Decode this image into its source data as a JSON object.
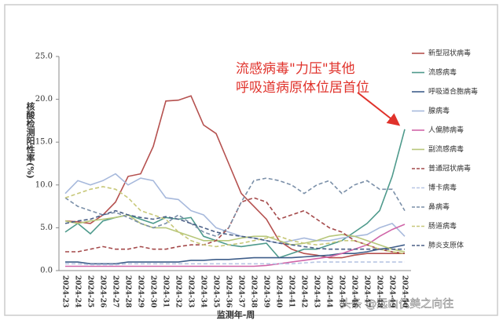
{
  "chart_data": {
    "type": "line",
    "y_label": "核酸检测阳性率(%)",
    "x_label": "监测年-周",
    "annotation": [
      "流感病毒\"力压\"其他",
      "呼吸道病原体位居首位"
    ],
    "watermark": "头条 @远山优美之向往",
    "categories": [
      "2024-23",
      "2024-24",
      "2024-25",
      "2024-26",
      "2024-27",
      "2024-28",
      "2024-29",
      "2024-30",
      "2024-31",
      "2024-32",
      "2024-33",
      "2024-34",
      "2024-35",
      "2024-36",
      "2024-37",
      "2024-38",
      "2024-39",
      "2024-40",
      "2024-41",
      "2024-42",
      "2024-43",
      "2024-44",
      "2024-45",
      "2024-46",
      "2024-47",
      "2024-48",
      "2024-49",
      "2024-50"
    ],
    "ylim": [
      0,
      25
    ],
    "yticks": [
      {
        "value": 0,
        "label": "0.0"
      },
      {
        "value": 5,
        "label": "5.0"
      },
      {
        "value": 10,
        "label": "10.0"
      },
      {
        "value": 15,
        "label": "15.0"
      },
      {
        "value": 20,
        "label": "20.0"
      },
      {
        "value": 25,
        "label": "25.0"
      }
    ],
    "series": [
      {
        "name": "新型冠状病毒",
        "color": "#b5514f",
        "dashed": false,
        "values": [
          5.8,
          5.7,
          5.5,
          6.5,
          8,
          11,
          11.3,
          14.5,
          19.8,
          19.9,
          20.4,
          17,
          16,
          12.5,
          9,
          7.5,
          6,
          3.5,
          2.5,
          2,
          1.8,
          1.5,
          1.5,
          1.8,
          2,
          2,
          2,
          2
        ]
      },
      {
        "name": "流感病毒",
        "color": "#4e9a8c",
        "dashed": false,
        "values": [
          4.5,
          5.5,
          4.3,
          5.8,
          6.2,
          6.5,
          6,
          5.5,
          6.2,
          6,
          6.2,
          4,
          3.5,
          3,
          2.8,
          3,
          3.2,
          1.5,
          2,
          2.5,
          2.5,
          3,
          3.5,
          4.5,
          5.5,
          7,
          11,
          16.5
        ]
      },
      {
        "name": "呼吸道合胞病毒",
        "color": "#3f5e8a",
        "dashed": false,
        "values": [
          1,
          1,
          0.8,
          0.8,
          0.8,
          1,
          1,
          1,
          1,
          1,
          1.2,
          1.2,
          1.3,
          1.3,
          1.4,
          1.5,
          1.5,
          1.5,
          1.5,
          1.6,
          1.7,
          1.8,
          2,
          2,
          2.2,
          2.5,
          2.7,
          3
        ]
      },
      {
        "name": "腺病毒",
        "color": "#a7b9dc",
        "dashed": false,
        "values": [
          9,
          10.5,
          10,
          10.5,
          11.3,
          10,
          10.8,
          10.5,
          8.5,
          8.3,
          7,
          6.5,
          5,
          4.5,
          4,
          3.8,
          3.5,
          3.2,
          3.5,
          3.8,
          3.5,
          3.5,
          3.8,
          4,
          4.2,
          5,
          5.5,
          4
        ]
      },
      {
        "name": "人偏肺病毒",
        "color": "#d065a8",
        "dashed": false,
        "values": [
          0.5,
          0.5,
          0.5,
          0.5,
          0.5,
          0.5,
          0.5,
          0.5,
          0.5,
          0.5,
          0.5,
          0.5,
          0.5,
          0.5,
          0.5,
          0.5,
          0.6,
          0.8,
          1,
          1.2,
          1.4,
          1.6,
          2,
          2.5,
          3,
          4,
          4.8,
          5.4
        ]
      },
      {
        "name": "副流感病毒",
        "color": "#b7c77a",
        "dashed": false,
        "values": [
          5.8,
          5.5,
          5.8,
          6,
          6.2,
          6.5,
          5.5,
          5,
          5,
          4.5,
          4,
          3.5,
          3.5,
          3.5,
          3.8,
          4,
          4,
          3.5,
          3,
          3.2,
          3.5,
          4,
          4.2,
          4,
          3.5,
          3,
          2.5,
          2.2
        ]
      },
      {
        "name": "普通冠状病毒",
        "color": "#a4494a",
        "dashed": true,
        "values": [
          2.2,
          2.2,
          2.5,
          2.8,
          2.5,
          2.5,
          2.8,
          2.5,
          2.5,
          2.8,
          3,
          3,
          3.5,
          5,
          8,
          8.5,
          8,
          6,
          6.5,
          7,
          6,
          5,
          4.5,
          3.5,
          3,
          2.5,
          2.2,
          2
        ]
      },
      {
        "name": "博卡病毒",
        "color": "#b8c6e4",
        "dashed": true,
        "values": [
          0.8,
          0.8,
          0.7,
          0.7,
          0.7,
          0.8,
          0.8,
          0.8,
          0.8,
          0.8,
          0.8,
          0.8,
          0.8,
          0.8,
          0.8,
          0.8,
          0.8,
          0.8,
          0.8,
          0.9,
          1,
          1,
          1,
          1,
          1,
          1,
          1,
          1
        ]
      },
      {
        "name": "鼻病毒",
        "color": "#7a8fa8",
        "dashed": true,
        "values": [
          8.5,
          7.5,
          7,
          6.5,
          6.8,
          6.2,
          5.5,
          5,
          5.5,
          6.5,
          5.5,
          4.5,
          4,
          5,
          8,
          10.5,
          10.8,
          10.5,
          10,
          9,
          10,
          10.5,
          9,
          10,
          10.5,
          9.5,
          9.5,
          7
        ]
      },
      {
        "name": "肠道病毒",
        "color": "#c8c87a",
        "dashed": true,
        "values": [
          8.5,
          9,
          9.5,
          9.8,
          9.5,
          8.5,
          7,
          6.5,
          6,
          4.5,
          3.5,
          3,
          2.8,
          3,
          3.2,
          3.5,
          3.8,
          4,
          3.5,
          3.2,
          3,
          3.2,
          3.5,
          3.5,
          3,
          2.5,
          2.2,
          2
        ]
      },
      {
        "name": "肺炎支原体",
        "color": "#4a5f86",
        "dashed": true,
        "values": [
          5.5,
          5.8,
          6,
          6.5,
          7,
          6.5,
          6.2,
          6,
          6.3,
          6,
          5.5,
          5,
          4.5,
          4.2,
          4,
          3.8,
          3.5,
          3.2,
          3,
          2.8,
          2.6,
          2.5,
          2.5,
          2.5,
          2.5,
          2.5,
          2.5,
          2.5
        ]
      }
    ]
  }
}
